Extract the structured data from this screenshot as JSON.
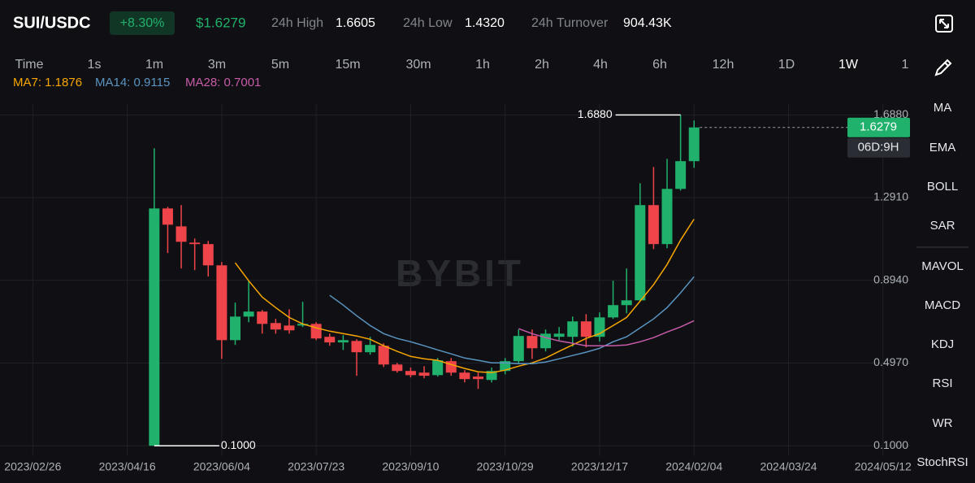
{
  "header": {
    "pair": "SUI/USDC",
    "change": "+8.30%",
    "price": "$1.6279",
    "high_label": "24h High",
    "high": "1.6605",
    "low_label": "24h Low",
    "low": "1.4320",
    "turnover_label": "24h Turnover",
    "turnover": "904.43K"
  },
  "timeframes": [
    "Time",
    "1s",
    "1m",
    "3m",
    "5m",
    "15m",
    "30m",
    "1h",
    "2h",
    "4h",
    "6h",
    "12h",
    "1D",
    "1W",
    "1"
  ],
  "indicators": [
    "MA",
    "EMA",
    "BOLL",
    "SAR",
    "MAVOL",
    "MACD",
    "KDJ",
    "RSI",
    "WR",
    "StochRSI"
  ],
  "watermark": "BYBIT",
  "chart_data": {
    "type": "candlestick",
    "x": [
      "2023/04/30",
      "2023/05/07",
      "2023/05/14",
      "2023/05/21",
      "2023/05/28",
      "2023/06/04",
      "2023/06/11",
      "2023/06/18",
      "2023/06/25",
      "2023/07/02",
      "2023/07/09",
      "2023/07/16",
      "2023/07/23",
      "2023/07/30",
      "2023/08/06",
      "2023/08/13",
      "2023/08/20",
      "2023/08/27",
      "2023/09/03",
      "2023/09/10",
      "2023/09/17",
      "2023/09/24",
      "2023/10/01",
      "2023/10/08",
      "2023/10/15",
      "2023/10/22",
      "2023/10/29",
      "2023/11/05",
      "2023/11/12",
      "2023/11/19",
      "2023/11/26",
      "2023/12/03",
      "2023/12/10",
      "2023/12/17",
      "2023/12/24",
      "2023/12/31",
      "2024/01/07",
      "2024/01/14",
      "2024/01/21",
      "2024/01/28",
      "2024/02/04"
    ],
    "open": [
      0.1,
      1.239,
      1.153,
      1.075,
      1.068,
      0.966,
      0.607,
      0.72,
      0.744,
      0.689,
      0.677,
      0.677,
      0.685,
      0.623,
      0.596,
      0.603,
      0.549,
      0.58,
      0.49,
      0.459,
      0.451,
      0.439,
      0.506,
      0.451,
      0.432,
      0.416,
      0.459,
      0.506,
      0.627,
      0.568,
      0.623,
      0.623,
      0.697,
      0.623,
      0.716,
      0.775,
      0.798,
      1.255,
      1.068,
      1.333,
      1.466
    ],
    "high": [
      1.528,
      1.247,
      1.255,
      1.095,
      1.083,
      0.982,
      0.787,
      0.892,
      0.752,
      0.709,
      0.755,
      0.791,
      0.693,
      0.638,
      0.631,
      0.611,
      0.623,
      0.592,
      0.498,
      0.475,
      0.482,
      0.521,
      0.521,
      0.463,
      0.451,
      0.475,
      0.521,
      0.658,
      0.658,
      0.658,
      0.67,
      0.72,
      0.732,
      0.74,
      0.892,
      0.951,
      1.36,
      1.438,
      1.477,
      1.688,
      1.661
    ],
    "low": [
      0.1,
      1.025,
      0.951,
      0.943,
      0.912,
      0.517,
      0.584,
      0.693,
      0.638,
      0.638,
      0.638,
      0.67,
      0.607,
      0.58,
      0.56,
      0.436,
      0.537,
      0.478,
      0.451,
      0.428,
      0.424,
      0.432,
      0.436,
      0.404,
      0.373,
      0.404,
      0.443,
      0.494,
      0.517,
      0.553,
      0.607,
      0.576,
      0.572,
      0.6,
      0.709,
      0.736,
      0.795,
      1.044,
      1.048,
      1.325,
      1.434
    ],
    "close": [
      1.239,
      1.161,
      1.079,
      1.068,
      0.966,
      0.607,
      0.72,
      0.744,
      0.685,
      0.658,
      0.654,
      0.685,
      0.615,
      0.596,
      0.607,
      0.549,
      0.584,
      0.49,
      0.459,
      0.439,
      0.436,
      0.51,
      0.451,
      0.42,
      0.42,
      0.459,
      0.506,
      0.627,
      0.568,
      0.638,
      0.638,
      0.697,
      0.623,
      0.716,
      0.775,
      0.798,
      1.255,
      1.068,
      1.333,
      1.466,
      1.6279
    ],
    "up_color": "#20b26c",
    "down_color": "#ef454a",
    "lines": [
      {
        "name": "MA7: 1.1876",
        "color": "#f7a600",
        "values": [
          null,
          null,
          null,
          null,
          null,
          null,
          0.978,
          0.892,
          0.814,
          0.763,
          0.716,
          0.685,
          0.666,
          0.65,
          0.638,
          0.627,
          0.611,
          0.58,
          0.553,
          0.529,
          0.517,
          0.51,
          0.49,
          0.471,
          0.455,
          0.451,
          0.463,
          0.482,
          0.498,
          0.521,
          0.553,
          0.584,
          0.615,
          0.638,
          0.677,
          0.716,
          0.794,
          0.873,
          0.97,
          1.087,
          1.1876
        ]
      },
      {
        "name": "MA14: 0.9115",
        "color": "#5a94c0",
        "values": [
          null,
          null,
          null,
          null,
          null,
          null,
          null,
          null,
          null,
          null,
          null,
          null,
          null,
          0.822,
          0.775,
          0.724,
          0.677,
          0.638,
          0.615,
          0.599,
          0.58,
          0.56,
          0.541,
          0.521,
          0.51,
          0.498,
          0.498,
          0.494,
          0.494,
          0.502,
          0.517,
          0.533,
          0.549,
          0.568,
          0.599,
          0.623,
          0.666,
          0.709,
          0.763,
          0.834,
          0.9115
        ]
      },
      {
        "name": "MA28: 0.7001",
        "color": "#c65ca8",
        "values": [
          null,
          null,
          null,
          null,
          null,
          null,
          null,
          null,
          null,
          null,
          null,
          null,
          null,
          null,
          null,
          null,
          null,
          null,
          null,
          null,
          null,
          null,
          null,
          null,
          null,
          null,
          null,
          0.662,
          0.638,
          0.619,
          0.603,
          0.592,
          0.58,
          0.58,
          0.58,
          0.584,
          0.599,
          0.619,
          0.646,
          0.67,
          0.7001
        ]
      }
    ],
    "xlim": [
      "2023/02/09",
      "2024/05/26"
    ],
    "xticks": [
      "2023/02/26",
      "2023/04/16",
      "2023/06/04",
      "2023/07/23",
      "2023/09/10",
      "2023/10/29",
      "2023/12/17",
      "2024/02/04",
      "2024/03/24",
      "2024/05/12"
    ],
    "ylim": [
      0.05,
      1.74
    ],
    "yticks": [
      {
        "value": 0.1,
        "label": "0.1000"
      },
      {
        "value": 0.497,
        "label": "0.4970"
      },
      {
        "value": 0.894,
        "label": "0.8940"
      },
      {
        "value": 1.291,
        "label": "1.2910"
      },
      {
        "value": 1.688,
        "label": "1.6880"
      }
    ],
    "grid": true,
    "max_label": "1.6880",
    "min_label": "0.1000",
    "last_price_label": "1.6279",
    "countdown": "06D:9H"
  }
}
